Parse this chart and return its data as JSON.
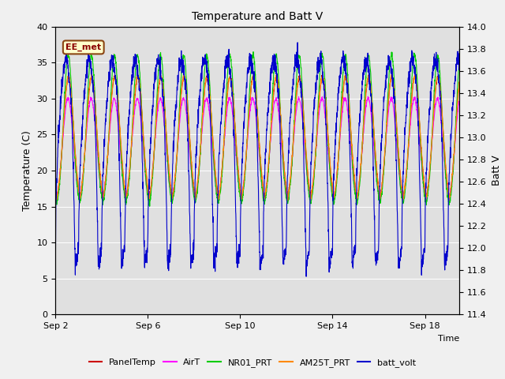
{
  "title": "Temperature and Batt V",
  "xlabel": "Time",
  "ylabel_left": "Temperature (C)",
  "ylabel_right": "Batt V",
  "ylim_left": [
    0,
    40
  ],
  "ylim_right": [
    11.4,
    14.0
  ],
  "xtick_labels": [
    "Sep 2",
    "Sep 6",
    "Sep 10",
    "Sep 14",
    "Sep 18"
  ],
  "xtick_positions": [
    0,
    4,
    8,
    12,
    16
  ],
  "annotation_text": "EE_met",
  "background_color": "#e0e0e0",
  "series": {
    "PanelTemp": {
      "color": "#cc0000",
      "lw": 0.8
    },
    "AirT": {
      "color": "#ff00ff",
      "lw": 0.8
    },
    "NR01_PRT": {
      "color": "#00cc00",
      "lw": 0.8
    },
    "AM25T_PRT": {
      "color": "#ff8800",
      "lw": 0.8
    },
    "batt_volt": {
      "color": "#0000cc",
      "lw": 0.8
    }
  },
  "n_days": 17.5,
  "pts_per_day": 144,
  "temp_night": 15.0,
  "temp_peak_panel": 33.0,
  "temp_peak_air": 30.0,
  "temp_peak_nr01": 36.0,
  "temp_peak_am25": 33.0,
  "batt_day": 13.5,
  "batt_night": 11.85,
  "figsize": [
    6.4,
    4.8
  ],
  "dpi": 100
}
